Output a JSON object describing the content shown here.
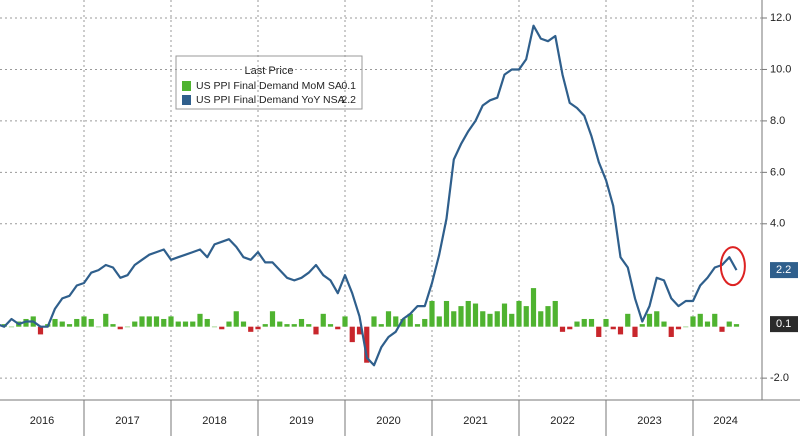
{
  "chart_data": {
    "type": "bar_line",
    "legend_title": "Last Price",
    "xlim": [
      2016,
      2024.75
    ],
    "xticks": [
      2016,
      2017,
      2018,
      2019,
      2020,
      2021,
      2022,
      2023,
      2024
    ],
    "ylim": [
      -2.85,
      12.7
    ],
    "yticks": [
      {
        "value": -2,
        "label": "-2.0"
      },
      {
        "value": 4,
        "label": "4.0"
      },
      {
        "value": 6,
        "label": "6.0"
      },
      {
        "value": 8,
        "label": "8.0"
      },
      {
        "value": 10,
        "label": "10.0"
      },
      {
        "value": 12,
        "label": "12.0"
      }
    ],
    "grid": true,
    "series": [
      {
        "name": "US PPI Final Demand MoM SA",
        "type": "bar",
        "color": "#4fb330",
        "negative_color": "#c8262c",
        "last": 0.1,
        "values": [
          -0.2,
          0.1,
          0.0,
          0.2,
          0.3,
          0.4,
          -0.3,
          0.1,
          0.3,
          0.2,
          0.1,
          0.3,
          0.4,
          0.3,
          0.0,
          0.5,
          0.1,
          -0.1,
          0.0,
          0.2,
          0.4,
          0.4,
          0.4,
          0.3,
          0.4,
          0.2,
          0.2,
          0.2,
          0.5,
          0.3,
          0.0,
          -0.1,
          0.2,
          0.6,
          0.2,
          -0.2,
          -0.1,
          0.1,
          0.6,
          0.2,
          0.1,
          0.1,
          0.3,
          0.1,
          -0.3,
          0.5,
          0.1,
          -0.1,
          0.4,
          -0.6,
          -0.3,
          -1.4,
          0.4,
          0.1,
          0.6,
          0.4,
          0.3,
          0.5,
          0.1,
          0.3,
          1.0,
          0.4,
          1.0,
          0.6,
          0.8,
          1.0,
          0.9,
          0.6,
          0.5,
          0.6,
          0.9,
          0.5,
          1.0,
          0.8,
          1.5,
          0.6,
          0.8,
          1.0,
          -0.2,
          -0.1,
          0.2,
          0.3,
          0.3,
          -0.4,
          0.3,
          -0.1,
          -0.3,
          0.5,
          -0.4,
          0.1,
          0.5,
          0.6,
          0.2,
          -0.4,
          -0.1,
          0.0,
          0.4,
          0.5,
          0.2,
          0.5,
          -0.2,
          0.2,
          0.1
        ]
      },
      {
        "name": "US PPI Final Demand YoY NSA",
        "type": "line",
        "color": "#2f5f8c",
        "last": 2.2,
        "values": [
          0.1,
          0.0,
          0.3,
          0.1,
          0.2,
          0.2,
          0.0,
          0.0,
          0.7,
          1.1,
          1.2,
          1.6,
          1.7,
          2.1,
          2.2,
          2.4,
          2.3,
          1.9,
          2.0,
          2.4,
          2.6,
          2.8,
          2.9,
          3.0,
          2.6,
          2.7,
          2.8,
          2.9,
          3.0,
          2.7,
          3.2,
          3.3,
          3.4,
          3.1,
          2.7,
          2.6,
          2.9,
          2.5,
          2.5,
          2.2,
          1.9,
          1.8,
          1.9,
          2.1,
          2.4,
          2.0,
          1.8,
          1.3,
          2.0,
          1.3,
          0.4,
          -1.2,
          -1.5,
          -0.8,
          -0.4,
          -0.2,
          0.3,
          0.5,
          0.8,
          0.8,
          1.7,
          2.8,
          4.2,
          6.5,
          7.1,
          7.6,
          8.0,
          8.6,
          8.8,
          8.9,
          9.8,
          10.0,
          10.0,
          10.4,
          11.7,
          11.2,
          11.1,
          11.3,
          9.8,
          8.7,
          8.5,
          8.2,
          7.4,
          6.4,
          5.7,
          4.7,
          2.7,
          2.3,
          1.1,
          0.2,
          0.8,
          1.9,
          1.8,
          1.1,
          0.8,
          1.0,
          1.0,
          1.6,
          1.9,
          2.3,
          2.4,
          2.7,
          2.2
        ]
      }
    ]
  }
}
